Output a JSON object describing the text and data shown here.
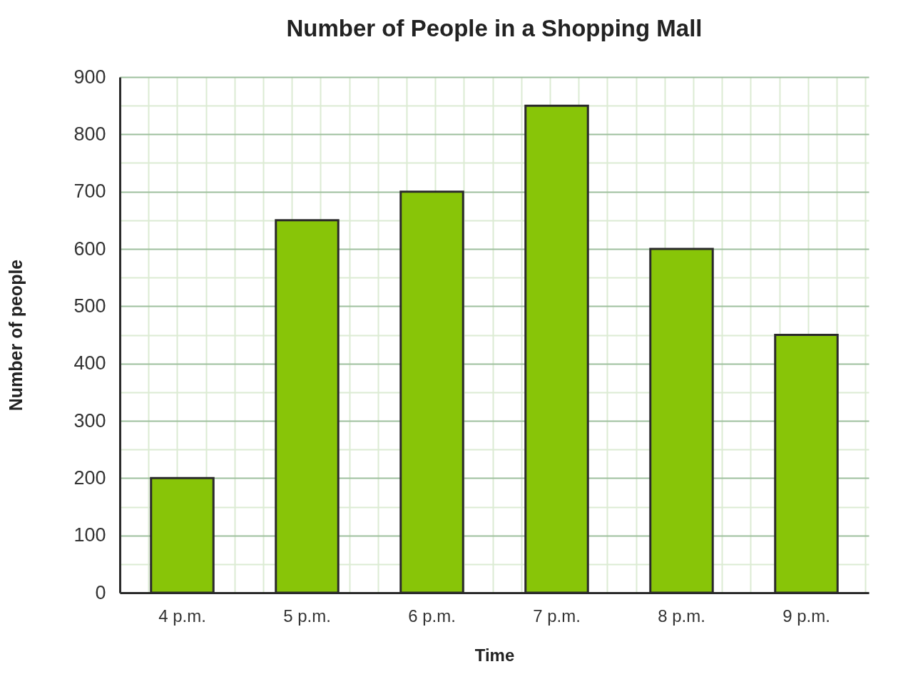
{
  "chart_data": {
    "type": "bar",
    "title": "Number of People in a Shopping Mall",
    "xlabel": "Time",
    "ylabel": "Number of people",
    "categories": [
      "4 p.m.",
      "5 p.m.",
      "6 p.m.",
      "7 p.m.",
      "8 p.m.",
      "9 p.m."
    ],
    "values": [
      200,
      650,
      700,
      850,
      600,
      450
    ],
    "color": "#88c508",
    "ylim": [
      0,
      900
    ],
    "yticks": [
      0,
      100,
      200,
      300,
      400,
      500,
      600,
      700,
      800,
      900
    ],
    "grid": true
  }
}
